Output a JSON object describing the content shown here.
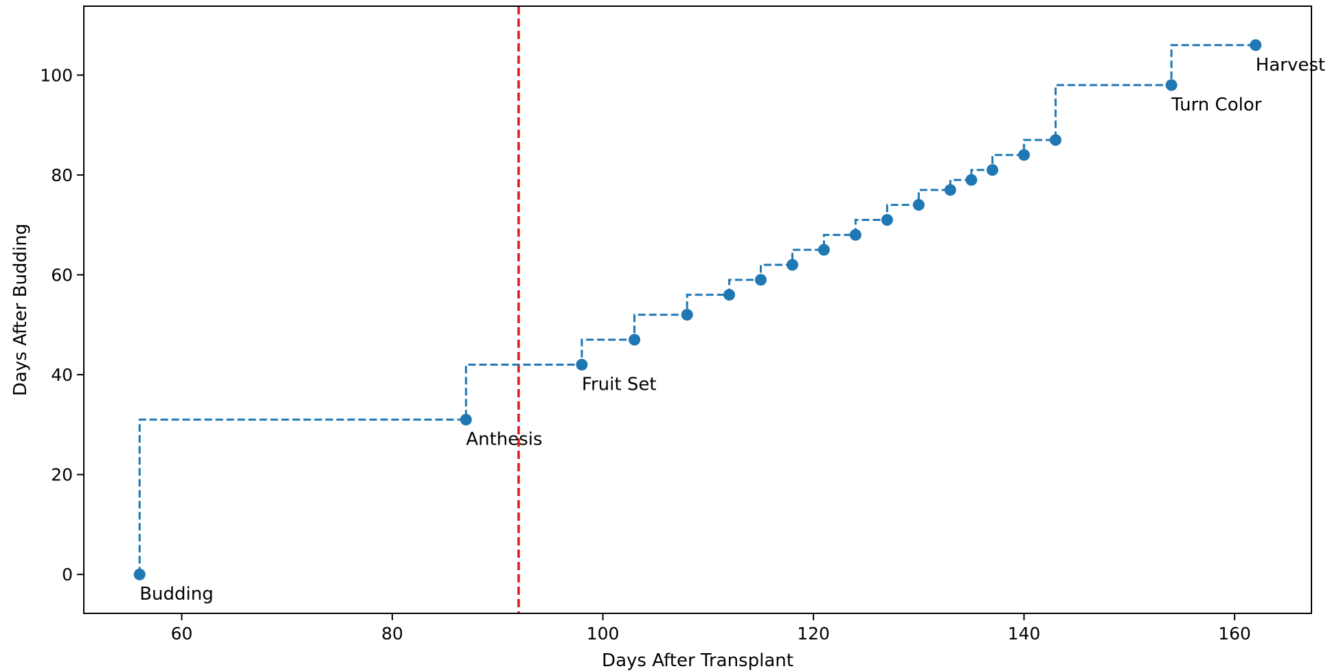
{
  "chart_data": {
    "type": "line",
    "step": "post",
    "title": "",
    "xlabel": "Days After Transplant",
    "ylabel": "Days After Budding",
    "xlim": [
      50.7,
      167.3
    ],
    "ylim": [
      -7.8,
      113.8
    ],
    "xticks": [
      60,
      80,
      100,
      120,
      140,
      160
    ],
    "yticks": [
      0,
      20,
      40,
      60,
      80,
      100
    ],
    "grid": false,
    "legend": "none",
    "series": [
      {
        "x": [
          56,
          87,
          98,
          103,
          108,
          112,
          115,
          118,
          121,
          124,
          127,
          130,
          133,
          135,
          137,
          140,
          143,
          154,
          162
        ],
        "y": [
          0,
          31,
          42,
          47,
          52,
          56,
          59,
          62,
          65,
          68,
          71,
          74,
          77,
          79,
          81,
          84,
          87,
          98,
          106
        ],
        "color": "#1f77b4",
        "linestyle": "dashed",
        "marker": "circle"
      }
    ],
    "annotations": [
      {
        "text": "Budding",
        "x": 56,
        "y": 0
      },
      {
        "text": "Anthesis",
        "x": 87,
        "y": 31
      },
      {
        "text": "Fruit Set",
        "x": 98,
        "y": 42
      },
      {
        "text": "Turn Color",
        "x": 154,
        "y": 98
      },
      {
        "text": "Harvest",
        "x": 162,
        "y": 106
      }
    ],
    "reference_lines": [
      {
        "orientation": "vertical",
        "x": 92,
        "color": "#e31a1c",
        "linestyle": "dashed"
      }
    ]
  }
}
